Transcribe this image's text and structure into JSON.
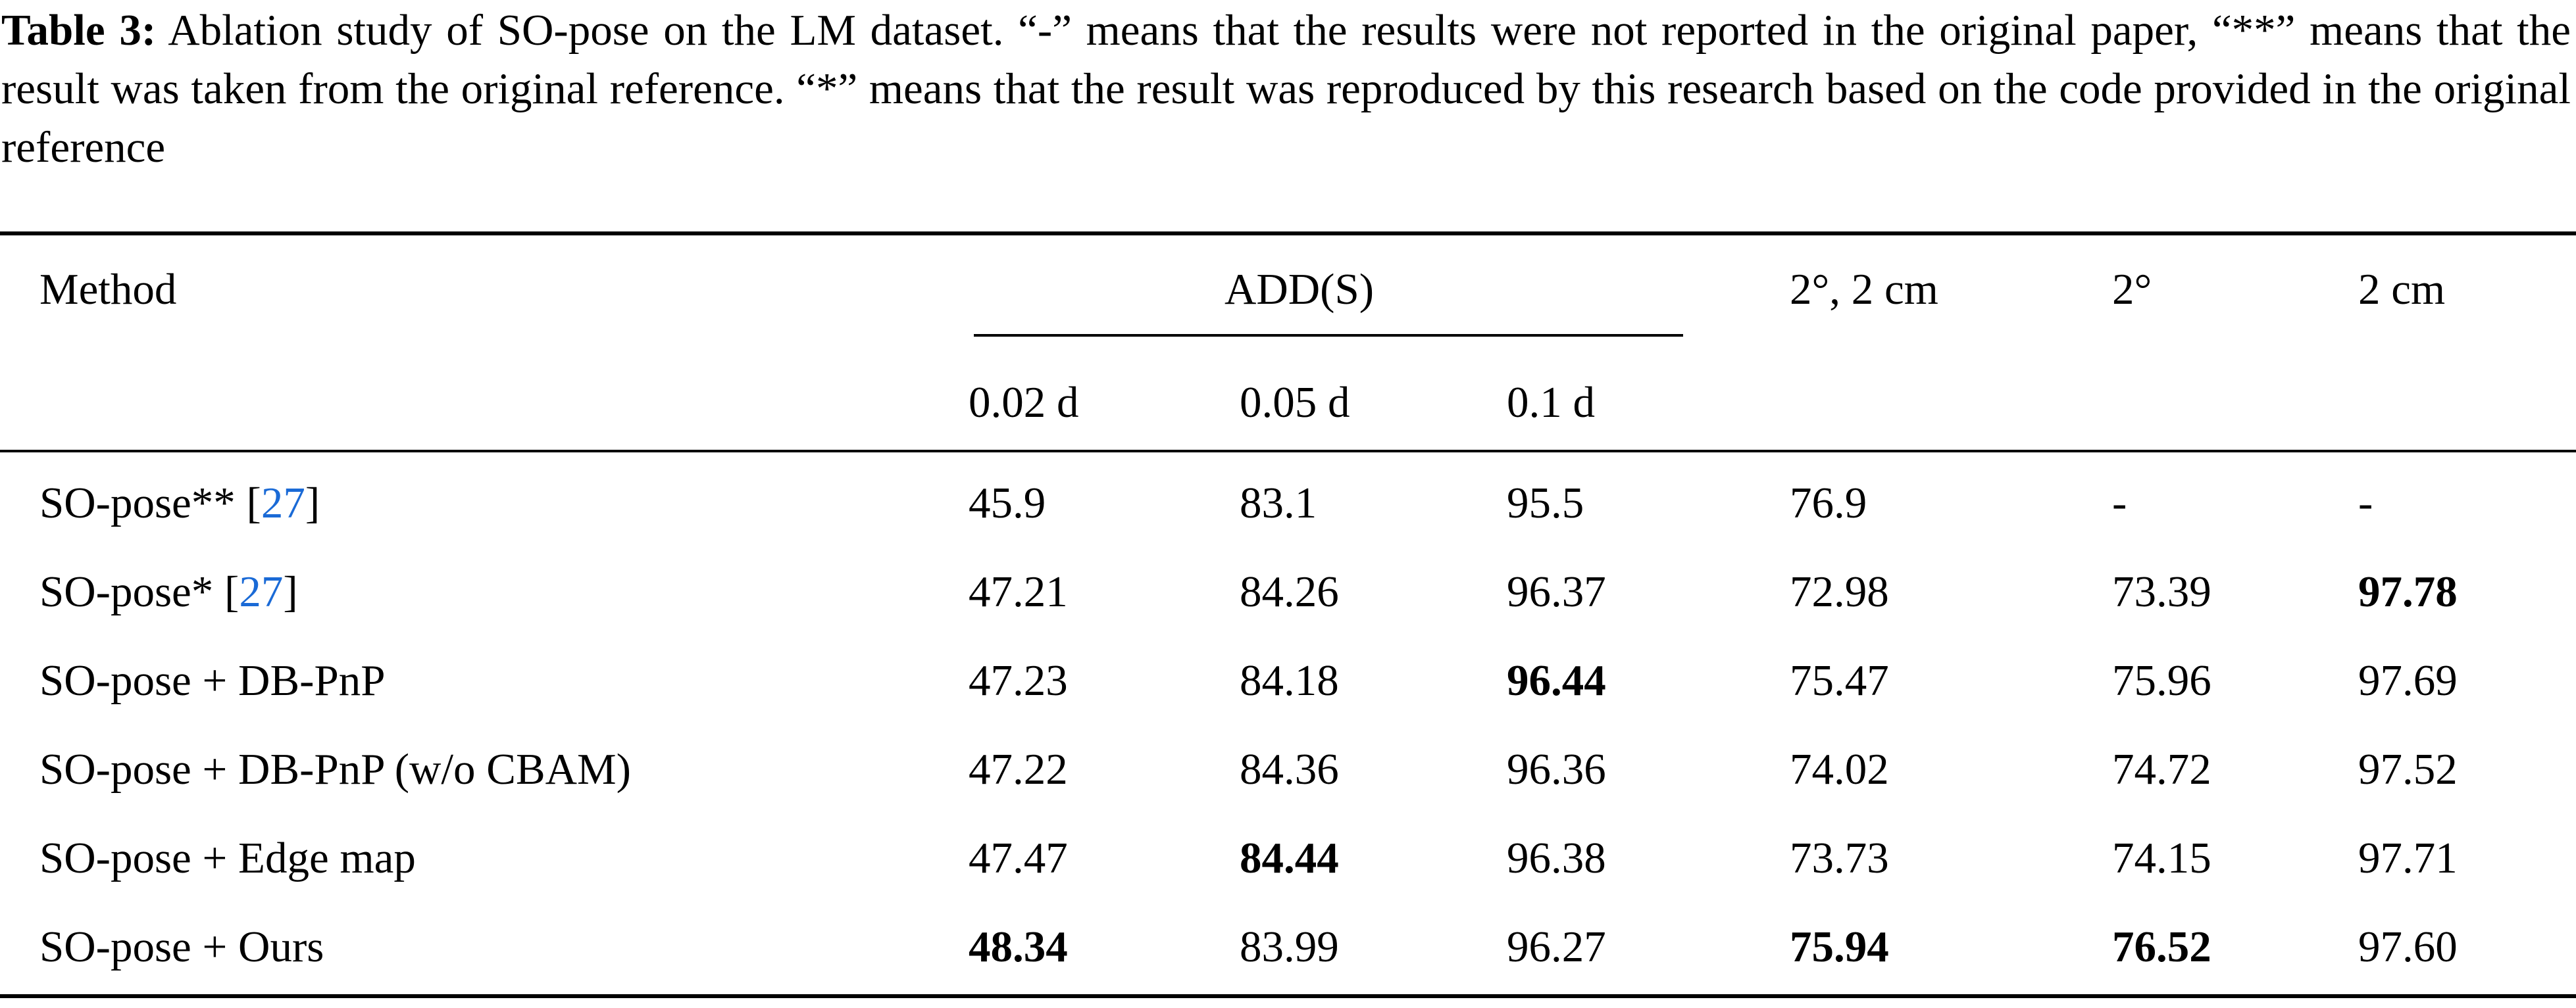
{
  "caption": {
    "label": "Table 3:",
    "text": "Ablation study of SO-pose on the LM dataset. “-” means that the results were not reported in the original paper, “**” means that the result was taken from the original reference. “*” means that the result was reproduced by this research based on the code provided in the original reference"
  },
  "table": {
    "header": {
      "method": "Method",
      "group": "ADD(S)",
      "sub": [
        "0.02 d",
        "0.05 d",
        "0.1 d"
      ],
      "col4": "2°, 2 cm",
      "col5": "2°",
      "col6": "2 cm"
    },
    "rows": [
      {
        "method": "SO-pose**",
        "ref": "27",
        "values": [
          "45.9",
          "83.1",
          "95.5",
          "76.9",
          "-",
          "-"
        ],
        "bold": [
          false,
          false,
          false,
          false,
          false,
          false
        ]
      },
      {
        "method": "SO-pose*",
        "ref": "27",
        "values": [
          "47.21",
          "84.26",
          "96.37",
          "72.98",
          "73.39",
          "97.78"
        ],
        "bold": [
          false,
          false,
          false,
          false,
          false,
          true
        ]
      },
      {
        "method": "SO-pose + DB-PnP",
        "ref": "",
        "values": [
          "47.23",
          "84.18",
          "96.44",
          "75.47",
          "75.96",
          "97.69"
        ],
        "bold": [
          false,
          false,
          true,
          false,
          false,
          false
        ]
      },
      {
        "method": "SO-pose + DB-PnP (w/o CBAM)",
        "ref": "",
        "values": [
          "47.22",
          "84.36",
          "96.36",
          "74.02",
          "74.72",
          "97.52"
        ],
        "bold": [
          false,
          false,
          false,
          false,
          false,
          false
        ]
      },
      {
        "method": "SO-pose + Edge map",
        "ref": "",
        "values": [
          "47.47",
          "84.44",
          "96.38",
          "73.73",
          "74.15",
          "97.71"
        ],
        "bold": [
          false,
          true,
          false,
          false,
          false,
          false
        ]
      },
      {
        "method": "SO-pose + Ours",
        "ref": "",
        "values": [
          "48.34",
          "83.99",
          "96.27",
          "75.94",
          "76.52",
          "97.60"
        ],
        "bold": [
          true,
          false,
          false,
          true,
          true,
          false
        ]
      }
    ]
  }
}
